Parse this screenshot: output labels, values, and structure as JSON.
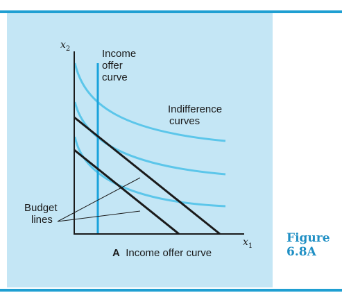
{
  "colors": {
    "rule": "#1f9fd2",
    "panel": "#c4e6f5",
    "axis": "#1a1a1a",
    "budget": "#1a1a1a",
    "indifference": "#5cc6ea",
    "offer": "#1aa3dc",
    "figure_label": "#1f8fc4"
  },
  "labels": {
    "y_axis_var": "x",
    "y_axis_sub": "2",
    "x_axis_var": "x",
    "x_axis_sub": "1",
    "offer_curve": [
      "Income",
      "offer",
      "curve"
    ],
    "indifference": [
      "Indifference",
      "curves"
    ],
    "budget": [
      "Budget",
      "lines"
    ],
    "caption_letter": "A",
    "caption_text": "Income offer curve",
    "figure_word": "Figure",
    "figure_number": "6.8A"
  }
}
